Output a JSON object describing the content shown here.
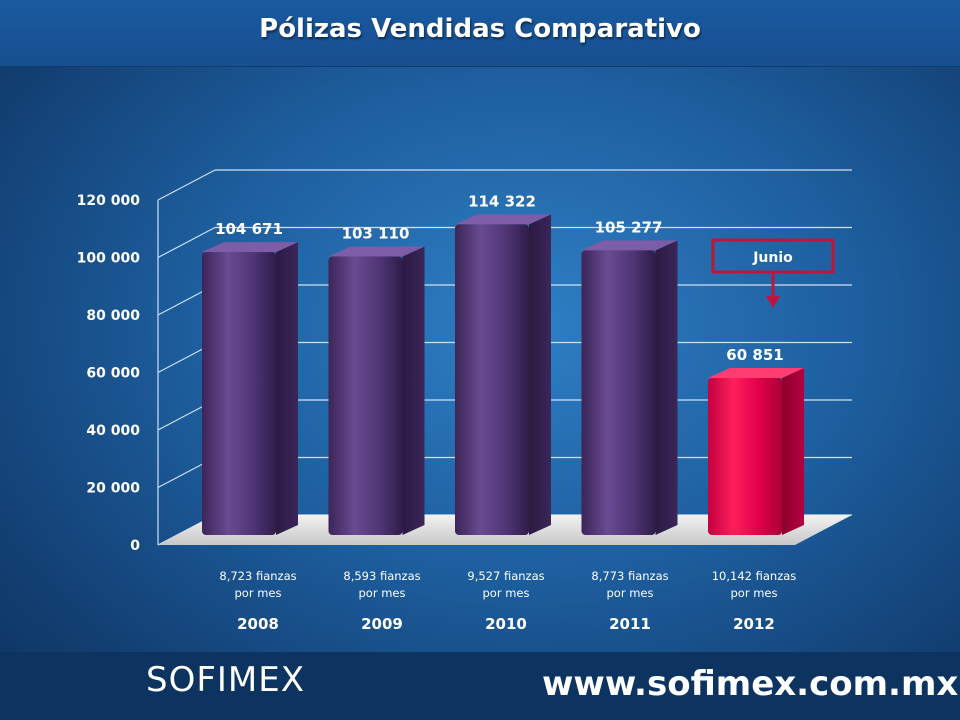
{
  "chart_data": {
    "type": "bar",
    "title": "Pólizas Vendidas Comparativo",
    "categories": [
      "2008",
      "2009",
      "2010",
      "2011",
      "2012"
    ],
    "values": [
      104671,
      103110,
      114322,
      105277,
      60851
    ],
    "value_labels": [
      "104 671",
      "103 110",
      "114 322",
      "105 277",
      "60 851"
    ],
    "sublabels": [
      [
        "8,723  fianzas",
        "por mes"
      ],
      [
        "8,593  fianzas",
        "por mes"
      ],
      [
        "9,527  fianzas",
        "por mes"
      ],
      [
        "8,773  fianzas",
        "por mes"
      ],
      [
        "10,142 fianzas",
        "por mes"
      ]
    ],
    "yticks": [
      "0",
      "20 000",
      "40 000",
      "60 000",
      "80 000",
      "100 000",
      "120 000"
    ],
    "ylim": [
      0,
      120000
    ],
    "grid": true,
    "annotation": "Junio",
    "colors": {
      "bar": "#5b3f82",
      "highlight_bar": "#e8004e",
      "annotation_border": "#c0143c",
      "axis_text": "#ffffff"
    }
  },
  "footer": {
    "brand": "SOFIMEX",
    "website": "www.sofimex.com.mx"
  }
}
